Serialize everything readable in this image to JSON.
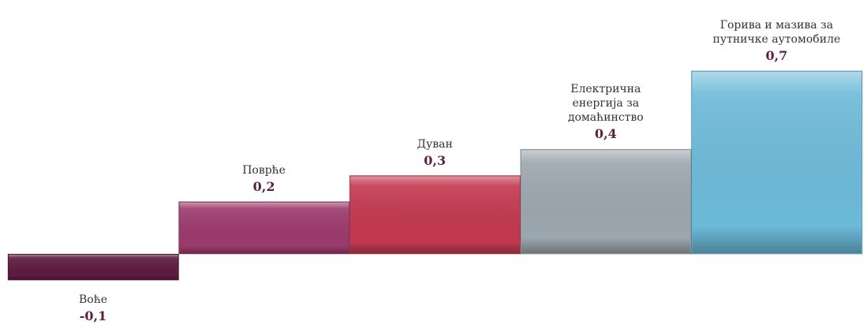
{
  "chart_data": {
    "type": "bar",
    "categories": [
      "Воће",
      "Поврће",
      "Дуван",
      "Електрична\nенергија за\nдомаћинство",
      "Горива и мазива за\nпутничке аутомобиле"
    ],
    "values": [
      -0.1,
      0.2,
      0.3,
      0.4,
      0.7
    ],
    "value_labels": [
      "-0,1",
      "0,2",
      "0,3",
      "0,4",
      "0,7"
    ],
    "colors": [
      "#5e1b3e",
      "#9c3a6d",
      "#c2394f",
      "#9ca6ae",
      "#6dbad9"
    ]
  }
}
